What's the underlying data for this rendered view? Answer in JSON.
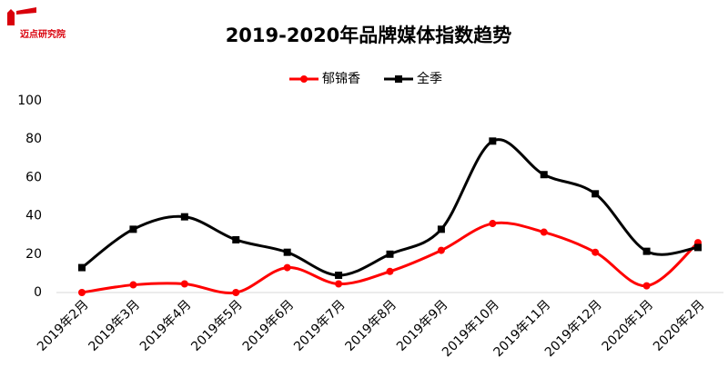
{
  "logo": "迈点研究院",
  "chart_data": {
    "type": "line",
    "title": "2019-2020年品牌媒体指数趋势",
    "categories": [
      "2019年2月",
      "2019年3月",
      "2019年4月",
      "2019年5月",
      "2019年6月",
      "2019年7月",
      "2019年8月",
      "2019年9月",
      "2019年10月",
      "2019年11月",
      "2019年12月",
      "2020年1月",
      "2020年2月"
    ],
    "series": [
      {
        "name": "郁锦香",
        "color": "#ff0000",
        "marker": "circle",
        "values": [
          0,
          4,
          4.5,
          0,
          13,
          4.5,
          11,
          22,
          36,
          31.5,
          21,
          3.5,
          26
        ]
      },
      {
        "name": "全季",
        "color": "#000000",
        "marker": "square",
        "values": [
          13,
          33,
          39.5,
          27.5,
          21,
          9,
          20,
          33,
          79,
          61.5,
          51.5,
          21.5,
          23.5
        ]
      }
    ],
    "ylim": [
      0,
      100
    ],
    "yticks": [
      0,
      20,
      40,
      60,
      80,
      100
    ],
    "grid": false,
    "smooth": true,
    "legend": "top"
  }
}
